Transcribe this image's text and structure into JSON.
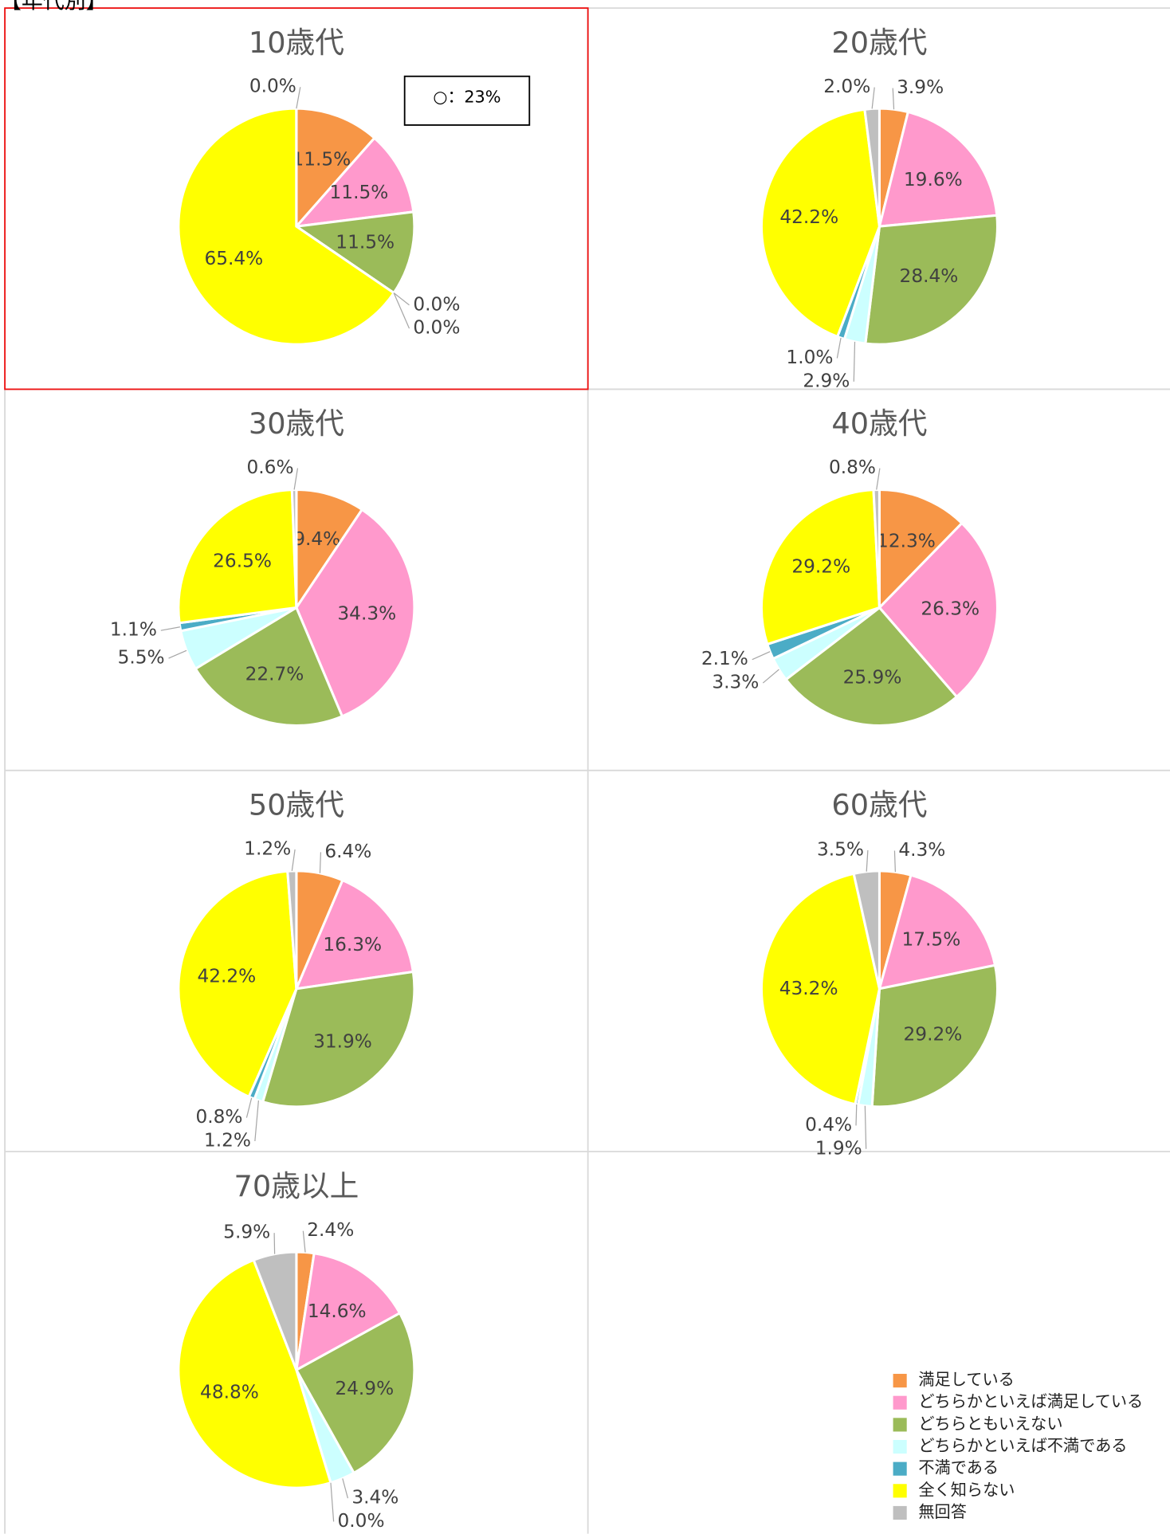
{
  "header": "【年代別】",
  "categories": [
    "満足している",
    "どちらかといえば満足している",
    "どちらともいえない",
    "どちらかといえば不満である",
    "不満である",
    "全く知らない",
    "無回答"
  ],
  "colors": [
    "#f79646",
    "#ff99cc",
    "#9bbb59",
    "#ccffff",
    "#4bacc6",
    "#ffff00",
    "#bfbfbf"
  ],
  "chart_data": [
    {
      "type": "pie",
      "title": "10歳代",
      "annotation": "○：23%",
      "values": [
        11.5,
        11.5,
        11.5,
        0.0,
        0.0,
        65.4,
        0.0
      ],
      "value_labels": [
        "11.5%",
        "11.5%",
        "11.5%",
        "0.0%",
        "0.0%",
        "65.4%",
        "0.0%"
      ]
    },
    {
      "type": "pie",
      "title": "20歳代",
      "values": [
        3.9,
        19.6,
        28.4,
        2.9,
        1.0,
        42.2,
        2.0
      ],
      "value_labels": [
        "3.9%",
        "19.6%",
        "28.4%",
        "2.9%",
        "1.0%",
        "42.2%",
        "2.0%"
      ]
    },
    {
      "type": "pie",
      "title": "30歳代",
      "values": [
        9.4,
        34.3,
        22.7,
        5.5,
        1.1,
        26.5,
        0.6
      ],
      "value_labels": [
        "9.4%",
        "34.3%",
        "22.7%",
        "5.5%",
        "1.1%",
        "26.5%",
        "0.6%"
      ]
    },
    {
      "type": "pie",
      "title": "40歳代",
      "values": [
        12.3,
        26.3,
        25.9,
        3.3,
        2.1,
        29.2,
        0.8
      ],
      "value_labels": [
        "12.3%",
        "26.3%",
        "25.9%",
        "3.3%",
        "2.1%",
        "29.2%",
        "0.8%"
      ]
    },
    {
      "type": "pie",
      "title": "50歳代",
      "values": [
        6.4,
        16.3,
        31.9,
        1.2,
        0.8,
        42.2,
        1.2
      ],
      "value_labels": [
        "6.4%",
        "16.3%",
        "31.9%",
        "1.2%",
        "0.8%",
        "42.2%",
        "1.2%"
      ]
    },
    {
      "type": "pie",
      "title": "60歳代",
      "values": [
        4.3,
        17.5,
        29.2,
        1.9,
        0.4,
        43.2,
        3.5
      ],
      "value_labels": [
        "4.3%",
        "17.5%",
        "29.2%",
        "1.9%",
        "0.4%",
        "43.2%",
        "3.5%"
      ]
    },
    {
      "type": "pie",
      "title": "70歳以上",
      "values": [
        2.4,
        14.6,
        24.9,
        3.4,
        0.0,
        48.8,
        5.9
      ],
      "value_labels": [
        "2.4%",
        "14.6%",
        "24.9%",
        "3.4%",
        "0.0%",
        "48.8%",
        "5.9%"
      ]
    }
  ]
}
